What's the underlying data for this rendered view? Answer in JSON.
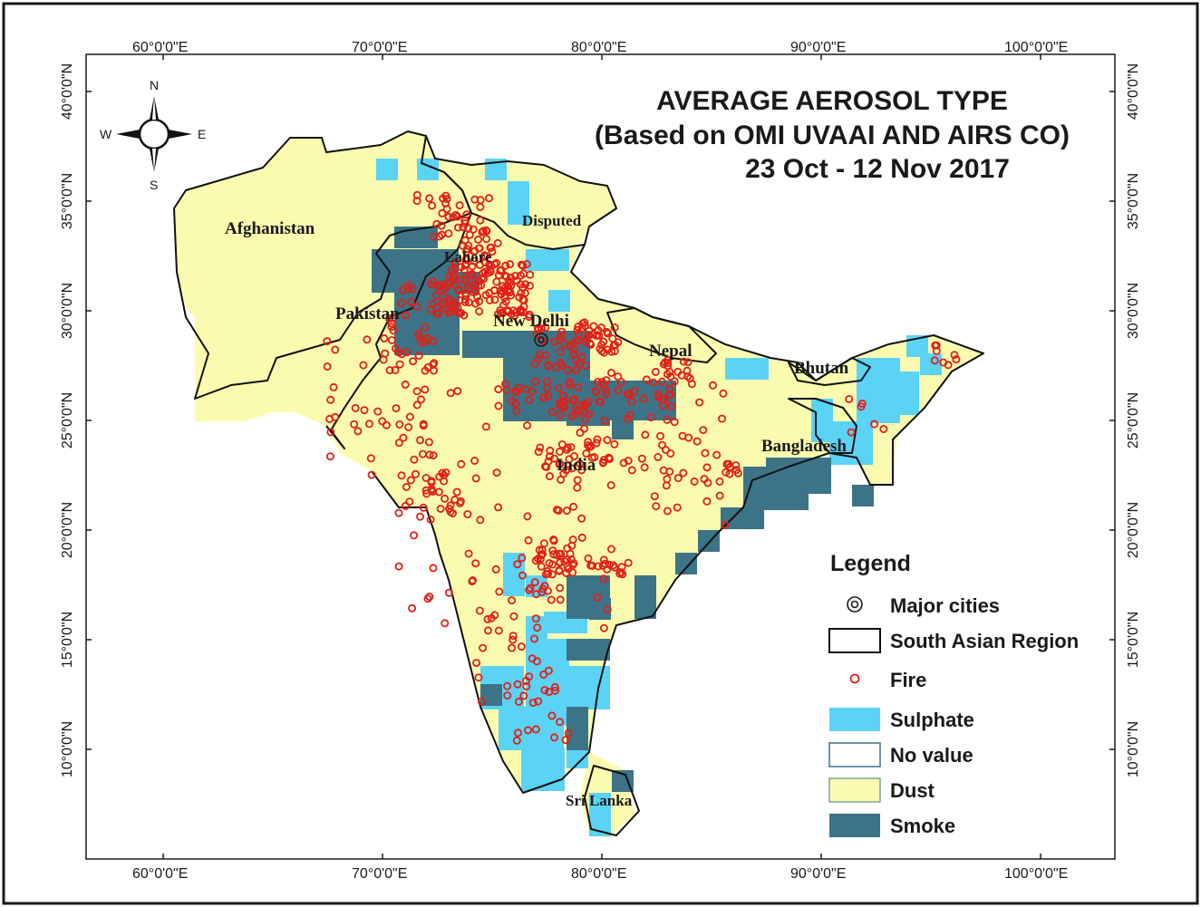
{
  "title": {
    "line1": "AVERAGE AEROSOL TYPE",
    "line2": "(Based on OMI UVAAI AND AIRS CO)",
    "line3": "23 Oct - 12 Nov 2017"
  },
  "compass": {
    "n": "N",
    "s": "S",
    "e": "E",
    "w": "W"
  },
  "axes": {
    "lon_ticks": [
      "60°0'0\"E",
      "70°0'0\"E",
      "80°0'0\"E",
      "90°0'0\"E",
      "100°0'0\"E"
    ],
    "lat_ticks": [
      "40°0'0\"N",
      "35°0'0\"N",
      "30°0'0\"N",
      "25°0'0\"N",
      "20°0'0\"N",
      "15°0'0\"N",
      "10°0'0\"N"
    ]
  },
  "places": {
    "afghanistan": "Afghanistan",
    "pakistan": "Pakistan",
    "lahore": "Lahore",
    "disputed": "Disputed",
    "new_delhi": "New Delhi",
    "nepal": "Nepal",
    "bhutan": "Bhutan",
    "bangladesh": "Bangladesh",
    "india": "India",
    "sri_lanka": "Sri Lanka"
  },
  "legend": {
    "title": "Legend",
    "items": [
      {
        "label": "Major cities",
        "symbol": "major-cities"
      },
      {
        "label": "South Asian Region",
        "symbol": "region-outline"
      },
      {
        "label": "Fire",
        "symbol": "fire-circle"
      },
      {
        "label": "Sulphate",
        "color": "#5bd3f5"
      },
      {
        "label": "No value",
        "color": "#ffffff"
      },
      {
        "label": "Dust",
        "color": "#fbfbb0"
      },
      {
        "label": "Smoke",
        "color": "#3d7386"
      }
    ]
  },
  "colors": {
    "dust": "#fbfbb0",
    "sulphate": "#5bd3f5",
    "smoke": "#3d7386",
    "fire": "#e0201a",
    "border": "#111111"
  }
}
